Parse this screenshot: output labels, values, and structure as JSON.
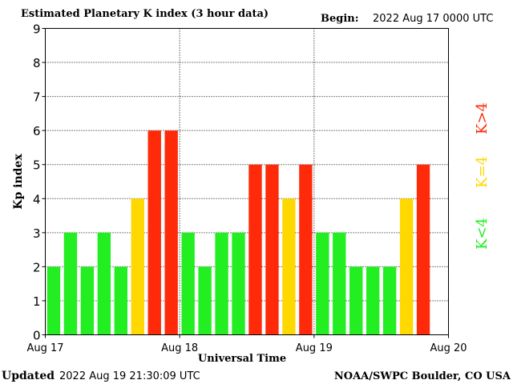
{
  "header": {
    "title": "Estimated Planetary K index (3 hour data)",
    "begin_label": "Begin:",
    "begin_value": "2022 Aug 17 0000 UTC"
  },
  "footer": {
    "updated_label": "Updated",
    "updated_value": "2022 Aug 19 21:30:09 UTC",
    "source": "NOAA/SWPC Boulder, CO USA"
  },
  "legend": {
    "low_label": "K<4",
    "mid_label": "K=4",
    "high_label": "K>4"
  },
  "colors": {
    "low": "#22ee22",
    "mid": "#ffd800",
    "high": "#ff2a0a",
    "axis": "#000000",
    "grid": "#000000"
  },
  "chart_data": {
    "type": "bar",
    "xlabel": "Universal Time",
    "ylabel": "Kp index",
    "ylim": [
      0,
      9
    ],
    "yticks": [
      "0",
      "1",
      "2",
      "3",
      "4",
      "5",
      "6",
      "7",
      "8",
      "9"
    ],
    "xticks": [
      "Aug 17",
      "Aug 18",
      "Aug 19",
      "Aug 20"
    ],
    "interval_hours": 3,
    "grid": true,
    "values": [
      2,
      3,
      2,
      3,
      2,
      4,
      6,
      6,
      3,
      2,
      3,
      3,
      5,
      5,
      4,
      5,
      3,
      3,
      2,
      2,
      2,
      4,
      5
    ]
  }
}
